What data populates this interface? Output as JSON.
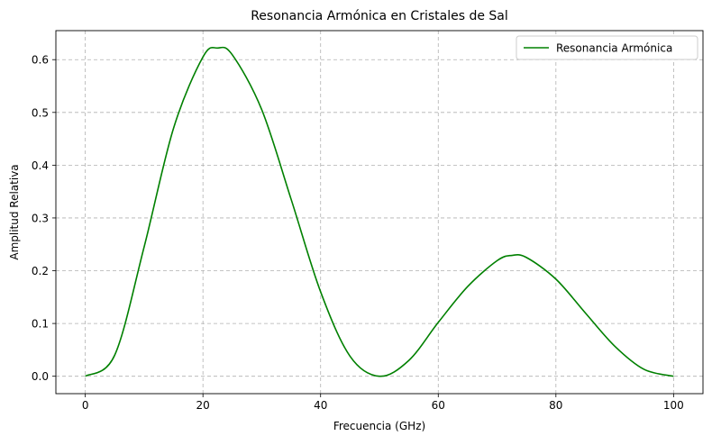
{
  "chart_data": {
    "type": "line",
    "title": "Resonancia Armónica en Cristales de Sal",
    "xlabel": "Frecuencia (GHz)",
    "ylabel": "Amplitud Relativa",
    "xlim": [
      -5,
      105
    ],
    "ylim": [
      -0.033,
      0.655
    ],
    "xticks": [
      0,
      20,
      40,
      60,
      80,
      100
    ],
    "xtick_labels": [
      "0",
      "20",
      "40",
      "60",
      "80",
      "100"
    ],
    "yticks": [
      0.0,
      0.1,
      0.2,
      0.3,
      0.4,
      0.5,
      0.6
    ],
    "ytick_labels": [
      "0.0",
      "0.1",
      "0.2",
      "0.3",
      "0.4",
      "0.5",
      "0.6"
    ],
    "grid": true,
    "legend_position": "top-right",
    "colors": {
      "series": "#008000"
    },
    "series": [
      {
        "name": "Resonancia Armónica",
        "x": [
          0,
          5,
          10,
          15,
          20,
          22.5,
          25,
          30,
          35,
          40,
          45,
          50,
          55,
          60,
          65,
          70,
          72.5,
          75,
          80,
          85,
          90,
          95,
          100
        ],
        "y": [
          0.0,
          0.04,
          0.245,
          0.47,
          0.605,
          0.622,
          0.609,
          0.505,
          0.335,
          0.16,
          0.038,
          0.0,
          0.03,
          0.102,
          0.17,
          0.219,
          0.229,
          0.225,
          0.184,
          0.12,
          0.057,
          0.013,
          0.0
        ]
      }
    ]
  }
}
